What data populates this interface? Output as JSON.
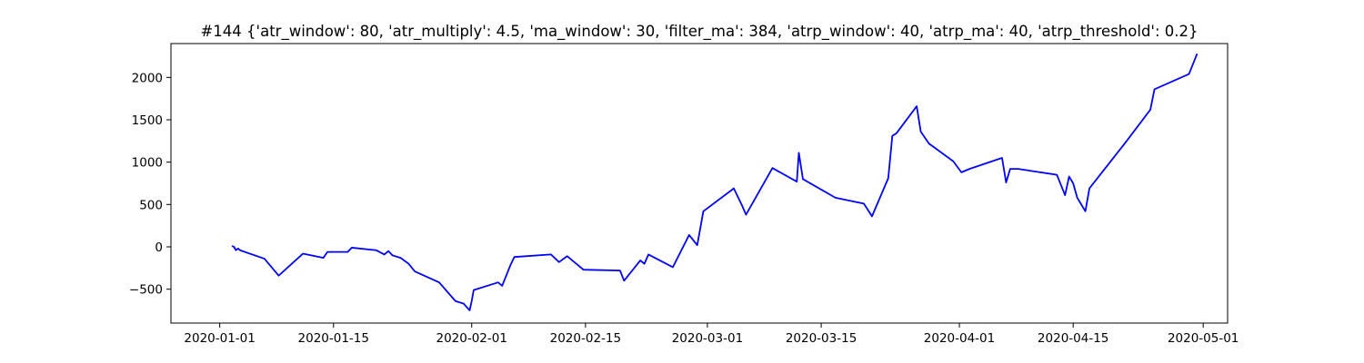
{
  "chart_data": {
    "type": "line",
    "title": "#144 {'atr_window': 80, 'atr_multiply': 4.5, 'ma_window': 30, 'filter_ma': 384, 'atrp_window': 40, 'atrp_ma': 40, 'atrp_threshold': 0.2}",
    "xlabel": "",
    "ylabel": "",
    "x_type": "date",
    "xlim": [
      "2019-12-26",
      "2020-05-04"
    ],
    "ylim": [
      -900,
      2400
    ],
    "grid": false,
    "legend": "none",
    "xticks": [
      "2020-01-01",
      "2020-01-15",
      "2020-02-01",
      "2020-02-15",
      "2020-03-01",
      "2020-03-15",
      "2020-04-01",
      "2020-04-15",
      "2020-05-01"
    ],
    "xtick_labels": [
      "2020-01-01",
      "2020-01-15",
      "2020-02-01",
      "2020-02-15",
      "2020-03-01",
      "2020-03-15",
      "2020-04-01",
      "2020-04-15",
      "2020-05-01"
    ],
    "yticks": [
      -500,
      0,
      500,
      1000,
      1500,
      2000
    ],
    "ytick_labels": [
      "−500",
      "0",
      "500",
      "1000",
      "1500",
      "2000"
    ],
    "series": [
      {
        "color": "#0000ff",
        "points": [
          [
            "2020-01-02 12:00",
            10
          ],
          [
            "2020-01-02 18:00",
            0
          ],
          [
            "2020-01-03 00:00",
            -40
          ],
          [
            "2020-01-03 06:00",
            -20
          ],
          [
            "2020-01-03 12:00",
            -40
          ],
          [
            "2020-01-06 12:00",
            -140
          ],
          [
            "2020-01-08 06:00",
            -340
          ],
          [
            "2020-01-11 06:00",
            -80
          ],
          [
            "2020-01-13 18:00",
            -130
          ],
          [
            "2020-01-14 06:00",
            -60
          ],
          [
            "2020-01-16 18:00",
            -60
          ],
          [
            "2020-01-17 06:00",
            -10
          ],
          [
            "2020-01-20 06:00",
            -40
          ],
          [
            "2020-01-21 06:00",
            -90
          ],
          [
            "2020-01-21 18:00",
            -50
          ],
          [
            "2020-01-22 06:00",
            -100
          ],
          [
            "2020-01-23 06:00",
            -130
          ],
          [
            "2020-01-24 06:00",
            -200
          ],
          [
            "2020-01-25 00:00",
            -290
          ],
          [
            "2020-01-28 00:00",
            -420
          ],
          [
            "2020-01-30 00:00",
            -640
          ],
          [
            "2020-01-31 00:00",
            -670
          ],
          [
            "2020-01-31 18:00",
            -750
          ],
          [
            "2020-02-01 00:00",
            -640
          ],
          [
            "2020-02-01 06:00",
            -510
          ],
          [
            "2020-02-04 06:00",
            -420
          ],
          [
            "2020-02-04 18:00",
            -460
          ],
          [
            "2020-02-05 18:00",
            -220
          ],
          [
            "2020-02-06 06:00",
            -120
          ],
          [
            "2020-02-10 18:00",
            -90
          ],
          [
            "2020-02-11 18:00",
            -180
          ],
          [
            "2020-02-12 18:00",
            -110
          ],
          [
            "2020-02-14 18:00",
            -270
          ],
          [
            "2020-02-19 06:00",
            -280
          ],
          [
            "2020-02-19 18:00",
            -400
          ],
          [
            "2020-02-21 18:00",
            -160
          ],
          [
            "2020-02-22 06:00",
            -200
          ],
          [
            "2020-02-22 18:00",
            -90
          ],
          [
            "2020-02-25 18:00",
            -240
          ],
          [
            "2020-02-27 18:00",
            140
          ],
          [
            "2020-02-28 18:00",
            20
          ],
          [
            "2020-02-29 12:00",
            420
          ],
          [
            "2020-03-04 06:00",
            690
          ],
          [
            "2020-03-05 06:00",
            490
          ],
          [
            "2020-03-05 18:00",
            380
          ],
          [
            "2020-03-09 00:00",
            930
          ],
          [
            "2020-03-12 00:00",
            770
          ],
          [
            "2020-03-12 06:00",
            1110
          ],
          [
            "2020-03-12 18:00",
            800
          ],
          [
            "2020-03-16 18:00",
            580
          ],
          [
            "2020-03-20 06:00",
            510
          ],
          [
            "2020-03-21 06:00",
            360
          ],
          [
            "2020-03-23 06:00",
            810
          ],
          [
            "2020-03-23 18:00",
            1310
          ],
          [
            "2020-03-24 06:00",
            1340
          ],
          [
            "2020-03-26 18:00",
            1660
          ],
          [
            "2020-03-27 06:00",
            1360
          ],
          [
            "2020-03-28 06:00",
            1220
          ],
          [
            "2020-03-31 06:00",
            1010
          ],
          [
            "2020-04-01 06:00",
            880
          ],
          [
            "2020-04-02 06:00",
            920
          ],
          [
            "2020-04-06 06:00",
            1050
          ],
          [
            "2020-04-06 18:00",
            760
          ],
          [
            "2020-04-07 06:00",
            920
          ],
          [
            "2020-04-08 06:00",
            920
          ],
          [
            "2020-04-13 00:00",
            850
          ],
          [
            "2020-04-14 00:00",
            610
          ],
          [
            "2020-04-14 12:00",
            830
          ],
          [
            "2020-04-15 00:00",
            750
          ],
          [
            "2020-04-15 12:00",
            580
          ],
          [
            "2020-04-16 12:00",
            420
          ],
          [
            "2020-04-17 00:00",
            690
          ],
          [
            "2020-04-21 12:00",
            1240
          ],
          [
            "2020-04-24 12:00",
            1620
          ],
          [
            "2020-04-25 00:00",
            1860
          ],
          [
            "2020-04-29 06:00",
            2040
          ],
          [
            "2020-04-30 06:00",
            2280
          ]
        ]
      }
    ]
  }
}
